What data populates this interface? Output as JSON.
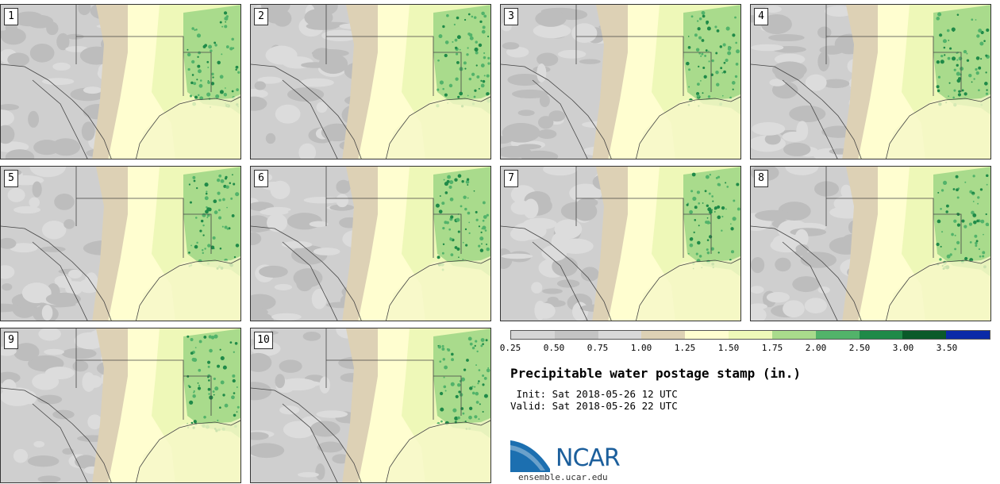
{
  "panels": [
    "1",
    "2",
    "3",
    "4",
    "5",
    "6",
    "7",
    "8",
    "9",
    "10"
  ],
  "colorbar": {
    "colors": [
      "#d6d6d6",
      "#c4c4c4",
      "#d9d9d9",
      "#ddd1b5",
      "#fffed0",
      "#eef8b8",
      "#a9db8c",
      "#52b36a",
      "#1f8a48",
      "#0a5a2a",
      "#0a2aa8"
    ],
    "tick_labels": [
      "0.25",
      "0.50",
      "0.75",
      "1.00",
      "1.25",
      "1.50",
      "1.75",
      "2.00",
      "2.50",
      "3.00",
      "3.50"
    ]
  },
  "title": "Precipitable water postage stamp (in.)",
  "init": " Init: Sat 2018-05-26 12 UTC",
  "valid": "Valid: Sat 2018-05-26 22 UTC",
  "logo": {
    "name": "NCAR",
    "url": "ensemble.ucar.edu"
  }
}
